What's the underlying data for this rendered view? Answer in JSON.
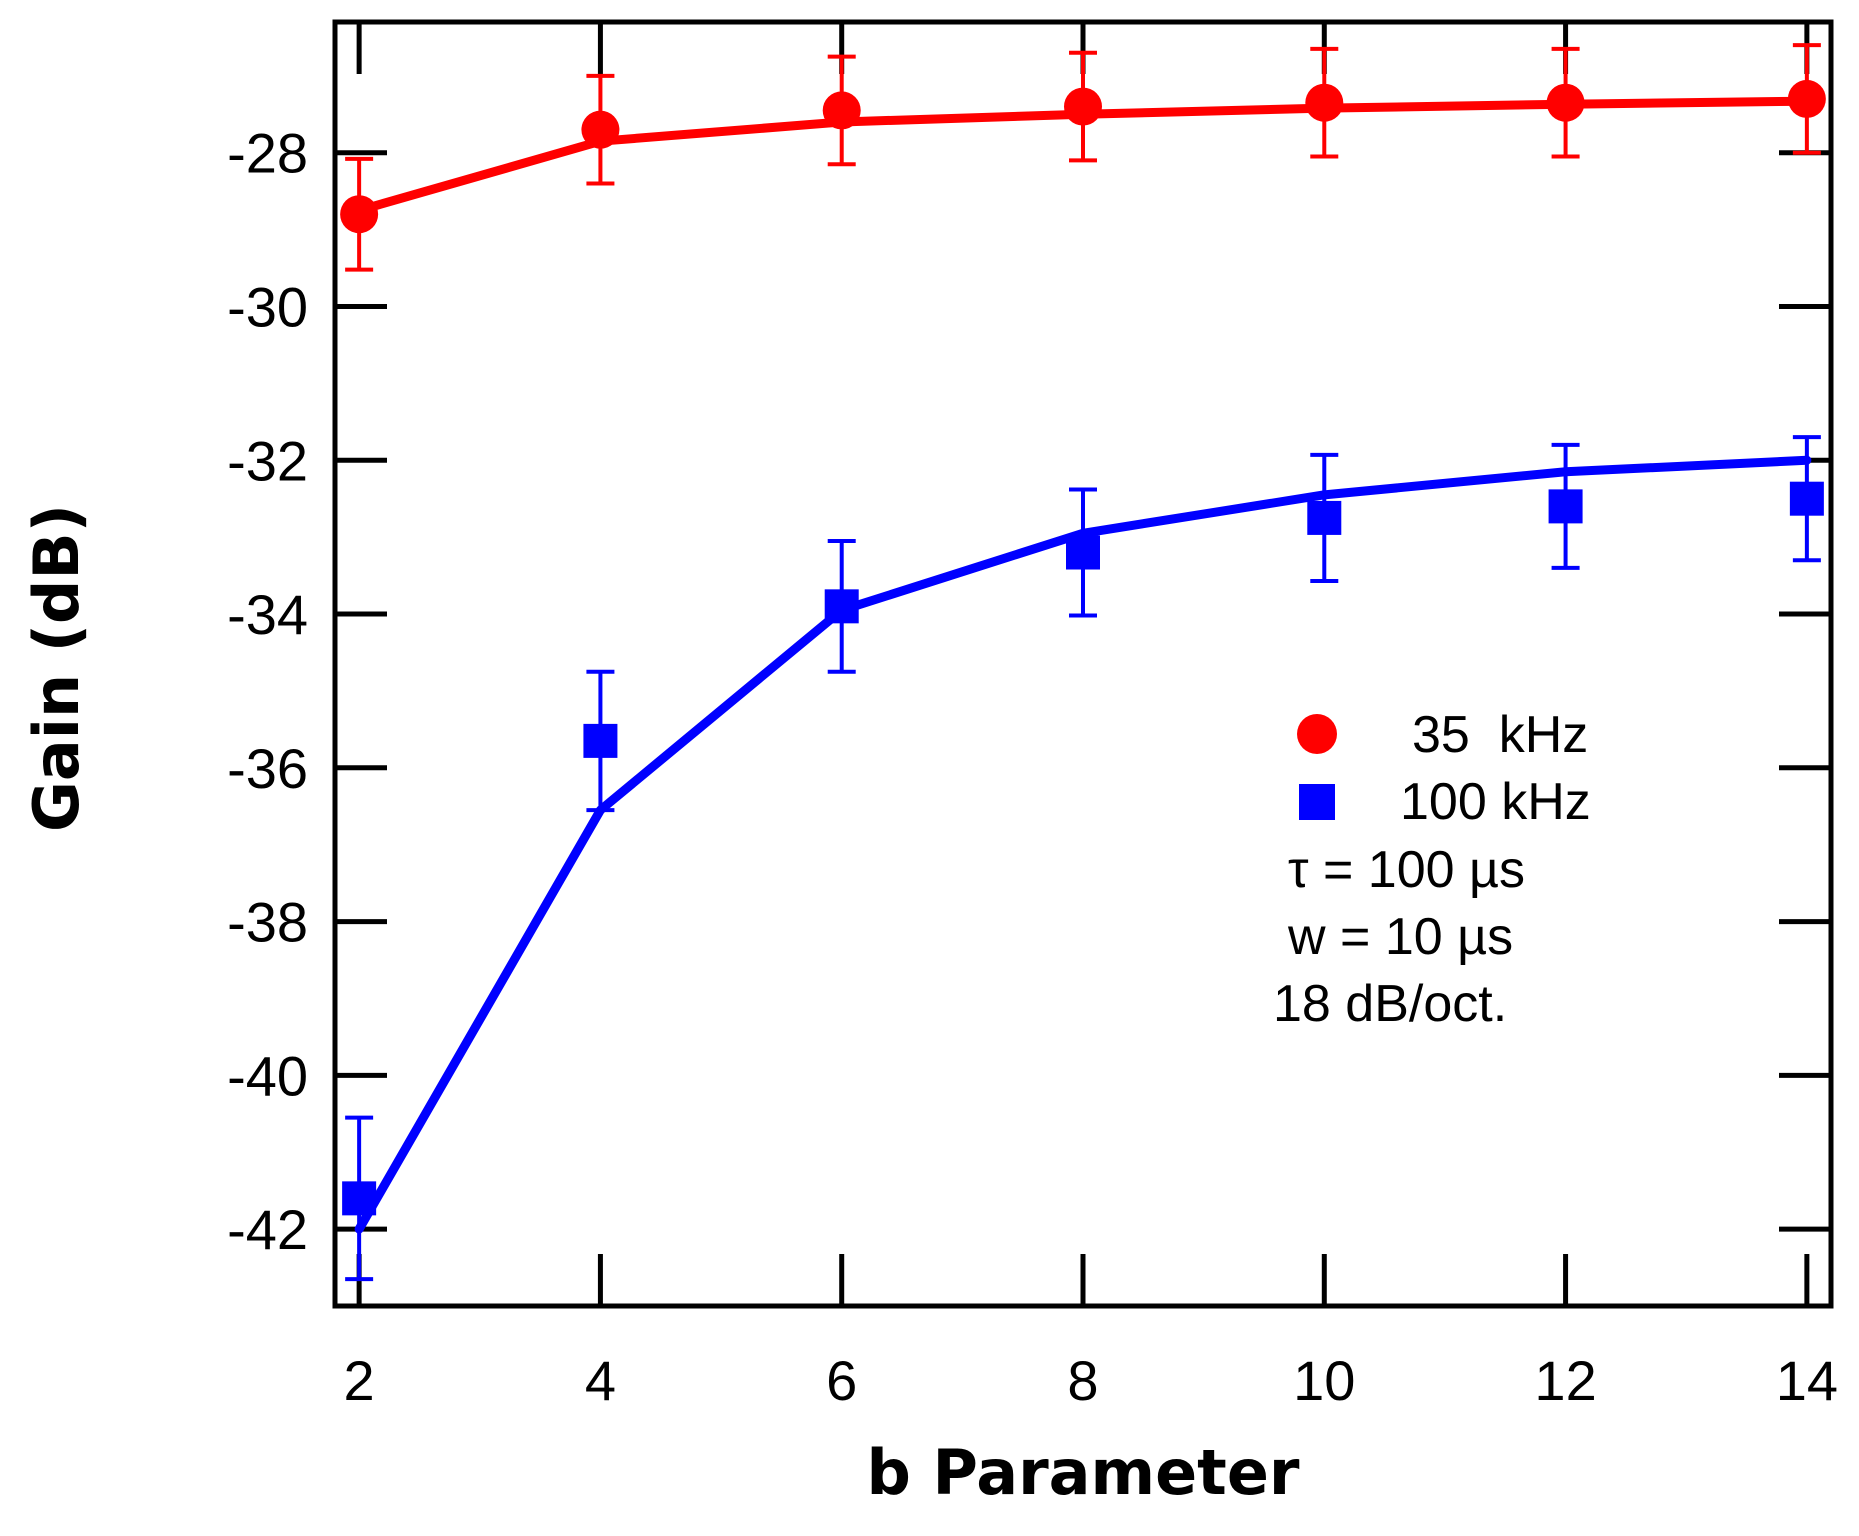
{
  "chart_data": {
    "type": "line",
    "title": "",
    "xlabel": "b Parameter",
    "ylabel": "Gain (dB)",
    "xlim": [
      1.8,
      14.2
    ],
    "ylim": [
      -43.0,
      -26.3
    ],
    "xticks": [
      2,
      4,
      6,
      8,
      10,
      12,
      14
    ],
    "xtick_labels": [
      "2",
      "4",
      "6",
      "8",
      "10",
      "12",
      "14"
    ],
    "yticks": [
      -28,
      -30,
      -32,
      -34,
      -36,
      -38,
      -40,
      -42
    ],
    "ytick_labels": [
      "-28",
      "-30",
      "-32",
      "-34",
      "-36",
      "-38",
      "-40",
      "-42"
    ],
    "grid": false,
    "legend_position": "center-right",
    "series": [
      {
        "name": "35  kHz",
        "color": "#ff0000",
        "marker": "circle",
        "x": [
          2,
          4,
          6,
          8,
          10,
          12,
          14
        ],
        "y": [
          -28.8,
          -27.7,
          -27.45,
          -27.4,
          -27.35,
          -27.35,
          -27.3
        ],
        "yerr": [
          0.72,
          0.7,
          0.7,
          0.7,
          0.7,
          0.7,
          0.7
        ],
        "fit": [
          -28.75,
          -27.85,
          -27.6,
          -27.5,
          -27.42,
          -27.37,
          -27.33
        ]
      },
      {
        "name": "100 kHz",
        "color": "#0000ff",
        "marker": "square",
        "x": [
          2,
          4,
          6,
          8,
          10,
          12,
          14
        ],
        "y": [
          -41.6,
          -35.65,
          -33.9,
          -33.2,
          -32.75,
          -32.6,
          -32.5
        ],
        "yerr": [
          1.05,
          0.9,
          0.85,
          0.82,
          0.82,
          0.8,
          0.8
        ],
        "fit": [
          -42.0,
          -36.55,
          -33.95,
          -32.95,
          -32.45,
          -32.15,
          -32.0
        ]
      }
    ],
    "annotations": [
      "τ = 100 µs",
      "w = 10 µs",
      "18 dB/oct."
    ]
  }
}
